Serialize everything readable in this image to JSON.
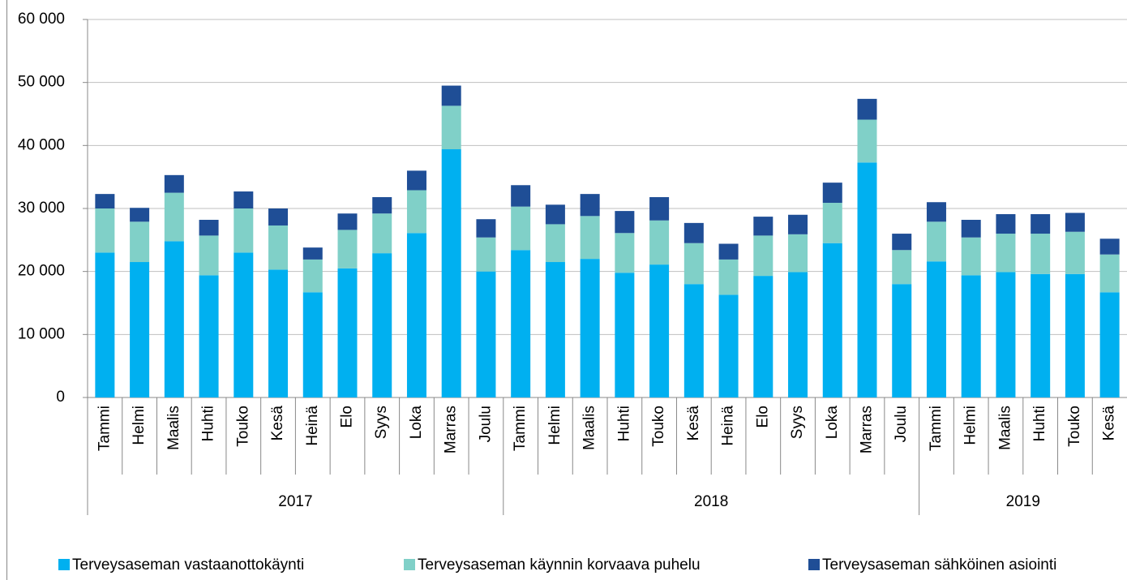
{
  "chart_data": {
    "type": "stacked-bar",
    "groups": [
      {
        "label": "2017",
        "categories": [
          "Tammi",
          "Helmi",
          "Maalis",
          "Huhti",
          "Touko",
          "Kesä",
          "Heinä",
          "Elo",
          "Syys",
          "Loka",
          "Marras",
          "Joulu"
        ]
      },
      {
        "label": "2018",
        "categories": [
          "Tammi",
          "Helmi",
          "Maalis",
          "Huhti",
          "Touko",
          "Kesä",
          "Heinä",
          "Elo",
          "Syys",
          "Loka",
          "Marras",
          "Joulu"
        ]
      },
      {
        "label": "2019",
        "categories": [
          "Tammi",
          "Helmi",
          "Maalis",
          "Huhti",
          "Touko",
          "Kesä"
        ]
      }
    ],
    "series": [
      {
        "name": "Terveysaseman vastaanottokäynti",
        "color": "#00b0f0",
        "values": [
          23000,
          21500,
          24800,
          19400,
          23000,
          20300,
          16700,
          20500,
          22900,
          26100,
          39400,
          20000,
          23400,
          21500,
          22000,
          19800,
          21100,
          18000,
          16300,
          19300,
          19900,
          24500,
          37300,
          18000,
          21600,
          19400,
          19900,
          19600,
          19600,
          16700
        ]
      },
      {
        "name": "Terveysaseman käynnin korvaava puhelu",
        "color": "#80d0c8",
        "values": [
          7000,
          6400,
          7700,
          6300,
          7000,
          7000,
          5200,
          6100,
          6300,
          6800,
          6900,
          5400,
          6900,
          6000,
          6800,
          6300,
          7000,
          6500,
          5600,
          6400,
          6000,
          6400,
          6800,
          5400,
          6300,
          6000,
          6100,
          6400,
          6700,
          6000
        ]
      },
      {
        "name": "Terveysaseman sähköinen asiointi",
        "color": "#1f4e96",
        "values": [
          2300,
          2200,
          2800,
          2500,
          2700,
          2700,
          1900,
          2600,
          2600,
          3100,
          3200,
          2900,
          3400,
          3100,
          3500,
          3500,
          3700,
          3200,
          2500,
          3000,
          3100,
          3200,
          3300,
          2600,
          3100,
          2800,
          3100,
          3100,
          3000,
          2500
        ]
      }
    ],
    "ylim": [
      0,
      60000
    ],
    "yticks": [
      0,
      {
        "value": 10000,
        "label": "10 000"
      },
      {
        "value": 20000,
        "label": "20 000"
      },
      {
        "value": 30000,
        "label": "30 000"
      },
      {
        "value": 40000,
        "label": "40 000"
      },
      {
        "value": 50000,
        "label": "50 000"
      },
      {
        "value": 60000,
        "label": "60 000"
      }
    ],
    "grid": true
  }
}
